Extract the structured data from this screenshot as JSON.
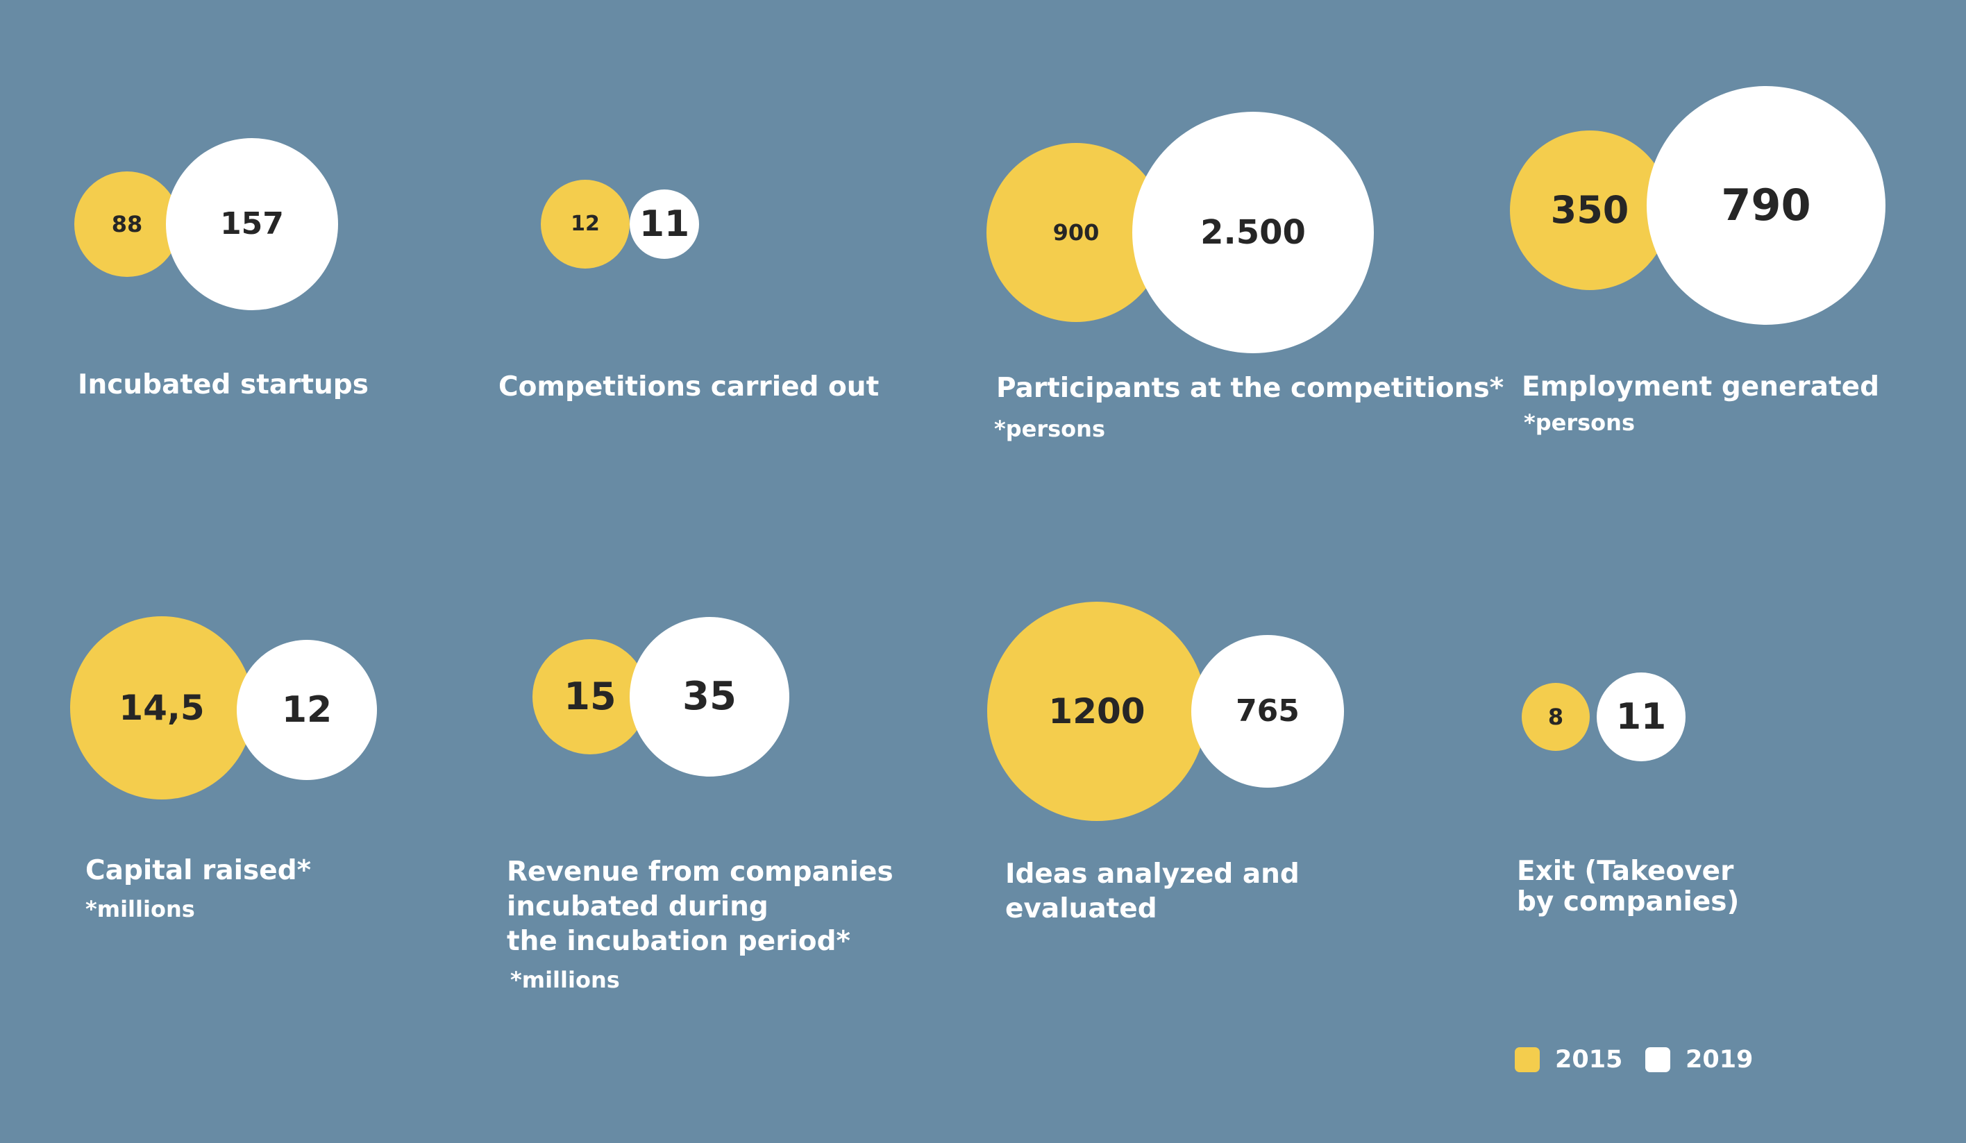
{
  "colors": {
    "background": "#688ba4",
    "year_a": "#f4cd4d",
    "year_b": "#ffffff",
    "value_text": "#262626",
    "label_text": "#ffffff"
  },
  "legend": [
    {
      "label": "2015",
      "color": "#f4cd4d"
    },
    {
      "label": "2019",
      "color": "#ffffff"
    }
  ],
  "chart_data": {
    "type": "bubble",
    "series": [
      "2015",
      "2019"
    ],
    "panels": [
      {
        "title": "Incubated startups",
        "unit": "",
        "values": [
          {
            "series": "2015",
            "value": 88,
            "display": "88"
          },
          {
            "series": "2019",
            "value": 157,
            "display": "157"
          }
        ]
      },
      {
        "title": "Competitions carried out",
        "unit": "",
        "values": [
          {
            "series": "2015",
            "value": 12,
            "display": "12"
          },
          {
            "series": "2019",
            "value": 11,
            "display": "11"
          }
        ]
      },
      {
        "title": "Participants at the competitions*",
        "unit": "*persons",
        "values": [
          {
            "series": "2015",
            "value": 900,
            "display": "900"
          },
          {
            "series": "2019",
            "value": 2500,
            "display": "2.500"
          }
        ]
      },
      {
        "title": "Employment generated",
        "unit": "*persons",
        "values": [
          {
            "series": "2015",
            "value": 350,
            "display": "350"
          },
          {
            "series": "2019",
            "value": 790,
            "display": "790"
          }
        ]
      },
      {
        "title": "Capital raised*",
        "unit": "*millions",
        "values": [
          {
            "series": "2015",
            "value": 14.5,
            "display": "14,5"
          },
          {
            "series": "2019",
            "value": 12,
            "display": "12"
          }
        ]
      },
      {
        "title": "Revenue from companies\nincubated during\nthe incubation period*",
        "unit": "*millions",
        "values": [
          {
            "series": "2015",
            "value": 15,
            "display": "15"
          },
          {
            "series": "2019",
            "value": 35,
            "display": "35"
          }
        ]
      },
      {
        "title": "Ideas analyzed and\nevaluated",
        "unit": "",
        "values": [
          {
            "series": "2015",
            "value": 1200,
            "display": "1200"
          },
          {
            "series": "2019",
            "value": 765,
            "display": "765"
          }
        ]
      },
      {
        "title": "Exit (Takeover\nby companies)",
        "unit": "",
        "values": [
          {
            "series": "2015",
            "value": 8,
            "display": "8"
          },
          {
            "series": "2019",
            "value": 11,
            "display": "11"
          }
        ]
      }
    ]
  }
}
